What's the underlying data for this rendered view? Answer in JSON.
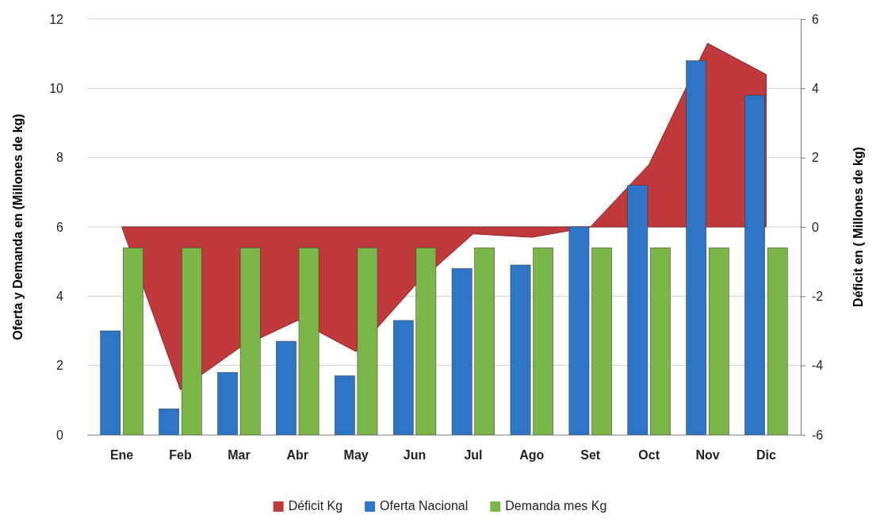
{
  "chart_data": {
    "type": "bar",
    "ylabel": "Oferta  y Demanda en (Millones de kg)",
    "y2label": "Déficit  en ( Millones de kg)",
    "categories": [
      "Ene",
      "Feb",
      "Mar",
      "Abr",
      "May",
      "Jun",
      "Jul",
      "Ago",
      "Set",
      "Oct",
      "Nov",
      "Dic"
    ],
    "series": [
      {
        "name": "Déficit Kg",
        "type": "area",
        "axis": "y2",
        "color": "#c0393b",
        "values": [
          0,
          -4.7,
          -3.5,
          -2.7,
          -3.6,
          -1.7,
          -0.2,
          -0.3,
          0,
          1.8,
          5.3,
          4.4
        ]
      },
      {
        "name": "Oferta Nacional",
        "color": "#2e75c6",
        "values": [
          3.0,
          0.75,
          1.8,
          2.7,
          1.7,
          3.3,
          4.8,
          4.9,
          6.0,
          7.2,
          10.8,
          9.8
        ]
      },
      {
        "name": "Demanda mes Kg",
        "color": "#7ab648",
        "values": [
          5.4,
          5.4,
          5.4,
          5.4,
          5.4,
          5.4,
          5.4,
          5.4,
          5.4,
          5.4,
          5.4,
          5.4
        ]
      }
    ],
    "ylim": [
      0,
      12
    ],
    "yticks": [
      0,
      2,
      4,
      6,
      8,
      10,
      12
    ],
    "y2lim": [
      -6,
      6
    ],
    "y2ticks": [
      -6,
      -4,
      -2,
      0,
      2,
      4,
      6
    ],
    "grid": "y",
    "legend": "bottom"
  }
}
